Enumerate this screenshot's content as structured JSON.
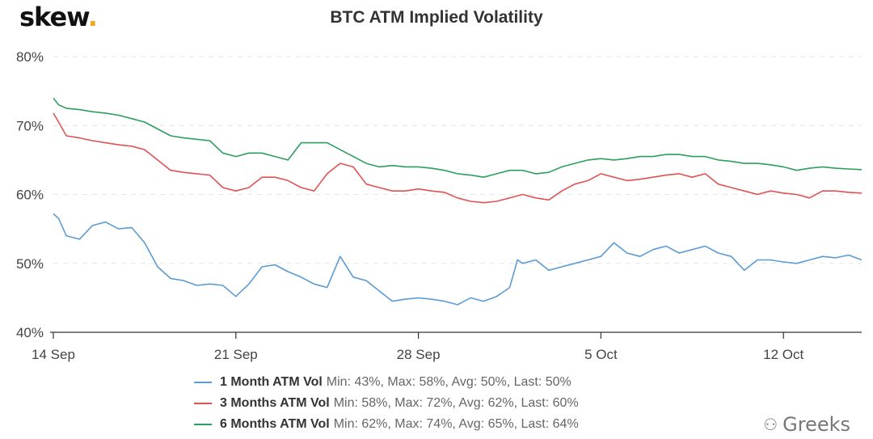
{
  "logo": {
    "text": "skew",
    "dot": "."
  },
  "watermark": {
    "icon": "wechat-icon",
    "text": "Greeks"
  },
  "chart_data": {
    "type": "line",
    "title": "BTC ATM Implied Volatility",
    "xlabel": "",
    "ylabel": "",
    "ylim": [
      40,
      80
    ],
    "xlim": [
      0,
      31
    ],
    "y_ticks": [
      {
        "value": 40,
        "label": "40%"
      },
      {
        "value": 50,
        "label": "50%"
      },
      {
        "value": 60,
        "label": "60%"
      },
      {
        "value": 70,
        "label": "70%"
      },
      {
        "value": 80,
        "label": "80%"
      }
    ],
    "x_ticks": [
      {
        "value": 0,
        "label": "14 Sep"
      },
      {
        "value": 7,
        "label": "21 Sep"
      },
      {
        "value": 14,
        "label": "28 Sep"
      },
      {
        "value": 21,
        "label": "5 Oct"
      },
      {
        "value": 28,
        "label": "12 Oct"
      }
    ],
    "grid": "horizontal",
    "legend_position": "bottom",
    "series": [
      {
        "name": "1 Month ATM Vol",
        "stats": "Min: 43%, Max: 58%, Avg: 50%, Last: 50%",
        "color": "#5b9bd5",
        "x": [
          0,
          0.2,
          0.5,
          1,
          1.5,
          2,
          2.5,
          3,
          3.5,
          4,
          4.5,
          5,
          5.5,
          6,
          6.5,
          7,
          7.5,
          8,
          8.5,
          9,
          9.5,
          10,
          10.5,
          11,
          11.5,
          12,
          12.5,
          13,
          13.5,
          14,
          14.5,
          15,
          15.5,
          16,
          16.5,
          17,
          17.5,
          17.8,
          18,
          18.5,
          19,
          19.5,
          20,
          20.5,
          21,
          21.5,
          22,
          22.5,
          23,
          23.5,
          24,
          24.5,
          25,
          25.5,
          26,
          26.5,
          27,
          27.5,
          28,
          28.5,
          29,
          29.5,
          30,
          30.5,
          31
        ],
        "y": [
          57.2,
          56.5,
          54,
          53.5,
          55.5,
          56,
          55,
          55.2,
          53,
          49.5,
          47.8,
          47.5,
          46.8,
          47,
          46.8,
          45.2,
          47,
          49.5,
          49.8,
          48.8,
          48,
          47,
          46.5,
          51,
          48,
          47.5,
          46,
          44.5,
          44.8,
          45,
          44.8,
          44.5,
          44,
          45,
          44.5,
          45.2,
          46.5,
          50.5,
          50,
          50.5,
          49,
          49.5,
          50,
          50.5,
          51,
          53,
          51.5,
          51,
          52,
          52.5,
          51.5,
          52,
          52.5,
          51.5,
          51,
          49,
          50.5,
          50.5,
          50.2,
          50,
          50.5,
          51,
          50.8,
          51.2,
          50.5
        ]
      },
      {
        "name": "3 Months ATM Vol",
        "stats": "Min: 58%, Max: 72%, Avg: 62%, Last: 60%",
        "color": "#e05252",
        "x": [
          0,
          0.2,
          0.5,
          1,
          1.5,
          2,
          2.5,
          3,
          3.5,
          4,
          4.5,
          5,
          5.5,
          6,
          6.5,
          7,
          7.5,
          8,
          8.5,
          9,
          9.5,
          10,
          10.5,
          11,
          11.5,
          12,
          12.5,
          13,
          13.5,
          14,
          14.5,
          15,
          15.5,
          16,
          16.5,
          17,
          17.5,
          18,
          18.5,
          19,
          19.5,
          20,
          20.5,
          21,
          21.5,
          22,
          22.5,
          23,
          23.5,
          24,
          24.5,
          25,
          25.5,
          26,
          26.5,
          27,
          27.5,
          28,
          28.5,
          29,
          29.5,
          30,
          30.5,
          31
        ],
        "y": [
          71.8,
          70.5,
          68.5,
          68.2,
          67.8,
          67.5,
          67.2,
          67,
          66.5,
          65,
          63.5,
          63.2,
          63,
          62.8,
          61,
          60.5,
          61,
          62.5,
          62.5,
          62,
          61,
          60.5,
          63,
          64.5,
          64,
          61.5,
          61,
          60.5,
          60.5,
          60.8,
          60.5,
          60.3,
          59.5,
          59,
          58.8,
          59,
          59.5,
          60,
          59.5,
          59.2,
          60.5,
          61.5,
          62,
          63,
          62.5,
          62,
          62.2,
          62.5,
          62.8,
          63,
          62.5,
          63,
          61.5,
          61,
          60.5,
          60,
          60.5,
          60.2,
          60,
          59.5,
          60.5,
          60.5,
          60.3,
          60.2
        ]
      },
      {
        "name": "6 Months ATM Vol",
        "stats": "Min: 62%, Max: 74%, Avg: 65%, Last: 64%",
        "color": "#2e9e5e",
        "x": [
          0,
          0.2,
          0.5,
          1,
          1.5,
          2,
          2.5,
          3,
          3.5,
          4,
          4.5,
          5,
          5.5,
          6,
          6.5,
          7,
          7.5,
          8,
          8.5,
          9,
          9.5,
          10,
          10.5,
          11,
          11.5,
          12,
          12.5,
          13,
          13.5,
          14,
          14.5,
          15,
          15.5,
          16,
          16.5,
          17,
          17.5,
          18,
          18.5,
          19,
          19.5,
          20,
          20.5,
          21,
          21.5,
          22,
          22.5,
          23,
          23.5,
          24,
          24.5,
          25,
          25.5,
          26,
          26.5,
          27,
          27.5,
          28,
          28.5,
          29,
          29.5,
          30,
          30.5,
          31
        ],
        "y": [
          74,
          73,
          72.5,
          72.3,
          72,
          71.8,
          71.5,
          71,
          70.5,
          69.5,
          68.5,
          68.2,
          68,
          67.8,
          66,
          65.5,
          66,
          66,
          65.5,
          65,
          67.5,
          67.5,
          67.5,
          66.5,
          65.5,
          64.5,
          64,
          64.2,
          64,
          64,
          63.8,
          63.5,
          63,
          62.8,
          62.5,
          63,
          63.5,
          63.5,
          63,
          63.2,
          64,
          64.5,
          65,
          65.2,
          65,
          65.2,
          65.5,
          65.5,
          65.8,
          65.8,
          65.5,
          65.5,
          65,
          64.8,
          64.5,
          64.5,
          64.3,
          64,
          63.5,
          63.8,
          64,
          63.8,
          63.7,
          63.6
        ]
      }
    ]
  }
}
